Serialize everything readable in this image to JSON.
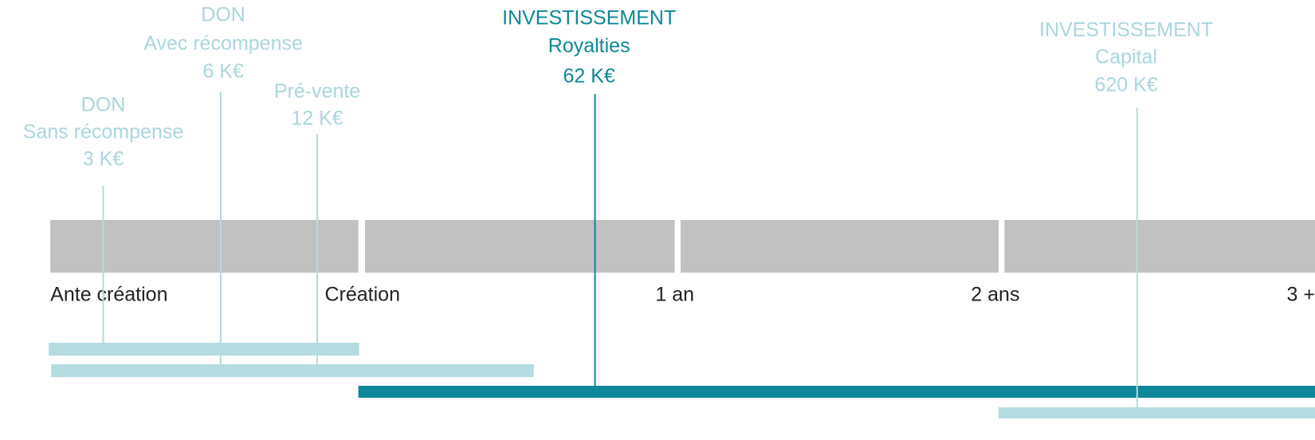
{
  "funding": [
    {
      "lines": [
        "DON",
        "Sans récompense",
        "3 K€"
      ]
    },
    {
      "lines": [
        "DON",
        "Avec récompense",
        "6 K€"
      ]
    },
    {
      "lines": [
        "Pré-vente",
        "12 K€"
      ]
    },
    {
      "lines": [
        "INVESTISSEMENT",
        "Royalties",
        "62 K€"
      ]
    },
    {
      "lines": [
        "INVESTISSEMENT",
        "Capital",
        "620 K€"
      ]
    }
  ],
  "timeline": [
    "Ante création",
    "Création",
    "1 an",
    "2 ans",
    "3 +"
  ]
}
